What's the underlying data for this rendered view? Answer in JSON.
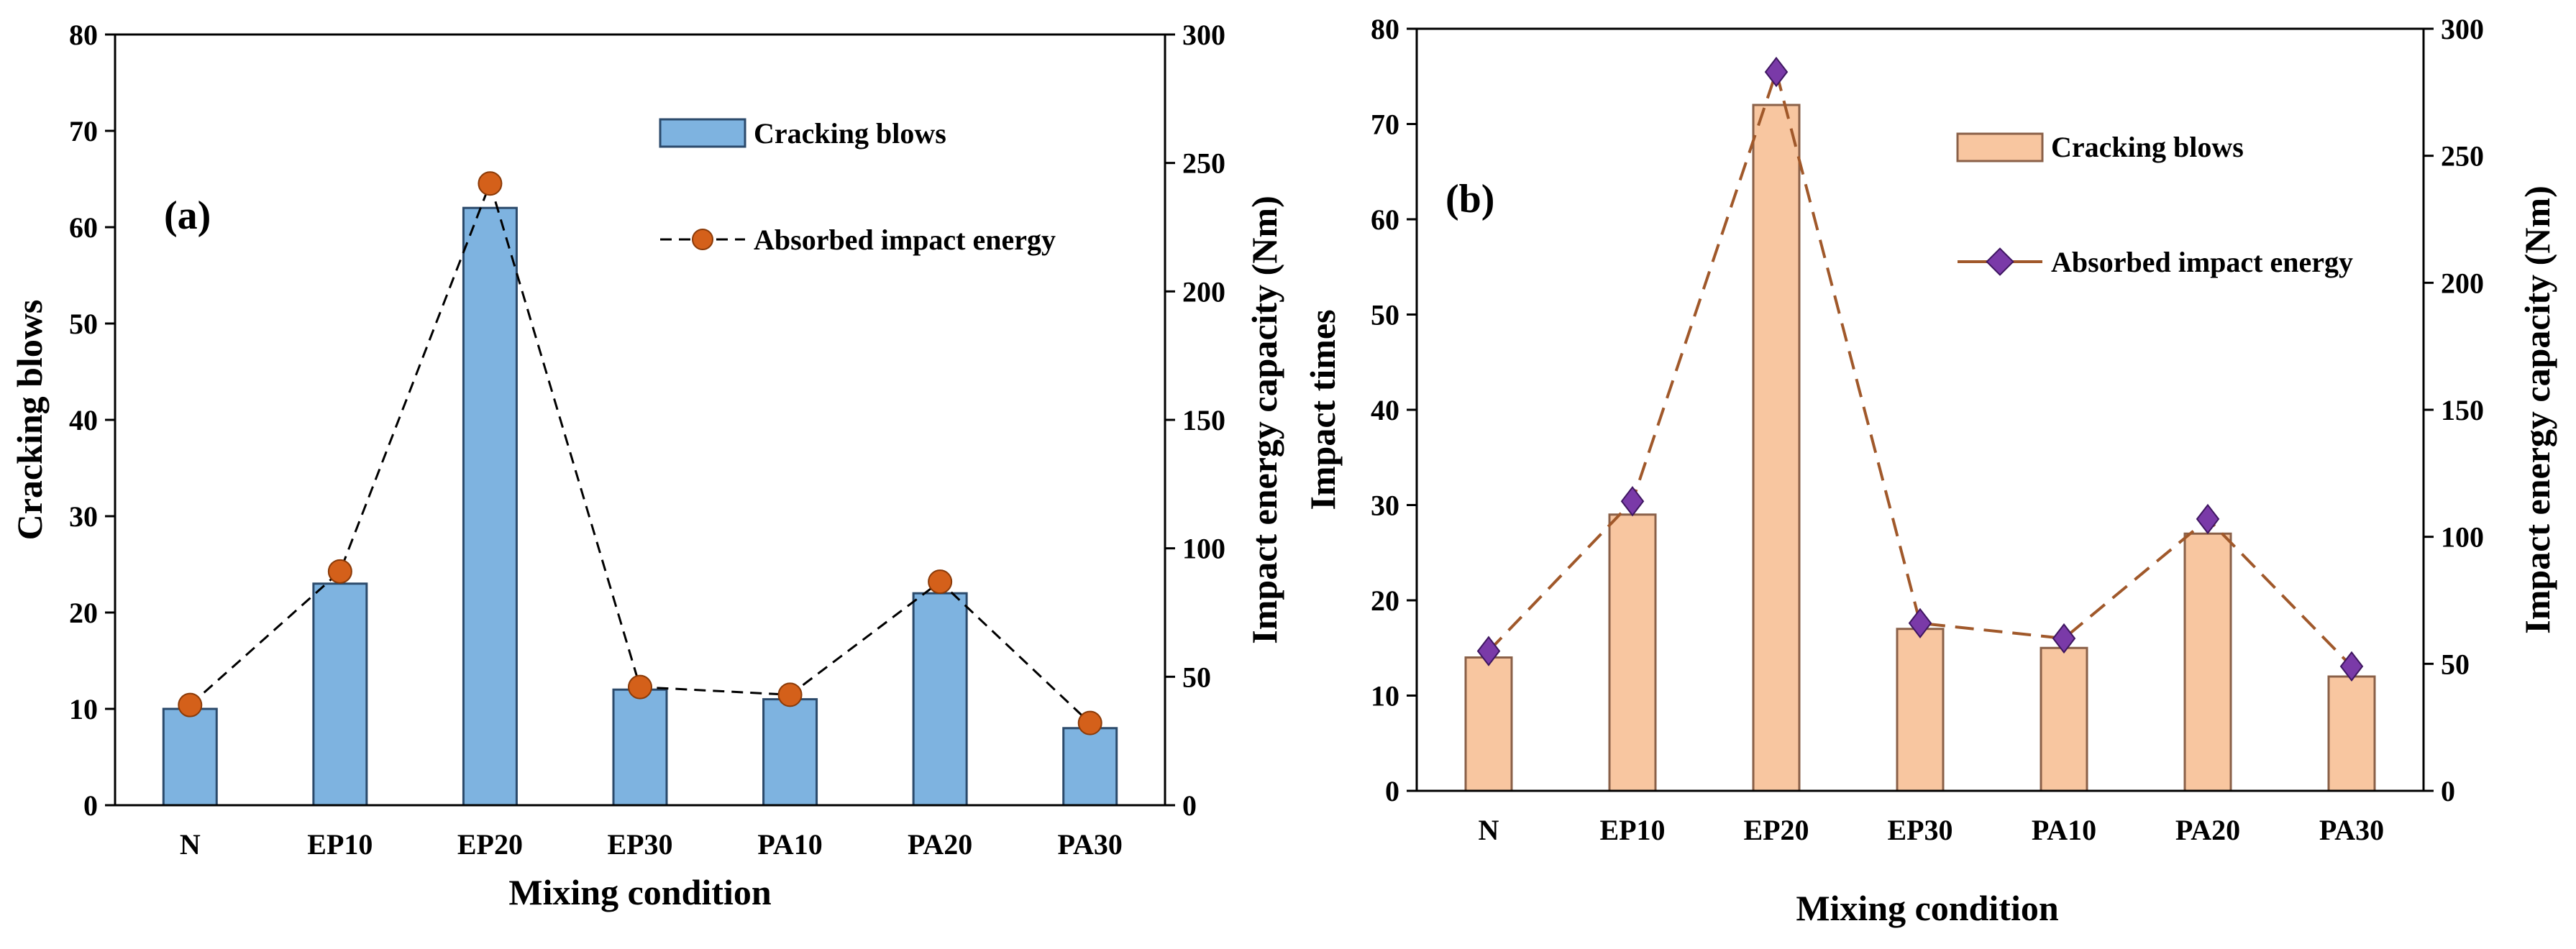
{
  "chart_data": [
    {
      "type": "bar",
      "panel_label": "(a)",
      "categories": [
        "N",
        "EP10",
        "EP20",
        "EP30",
        "PA10",
        "PA20",
        "PA30"
      ],
      "xlabel": "Mixing condition",
      "ylabel": "Cracking blows",
      "y2label": "Impact energy capacity (Nm)",
      "ylim": [
        0,
        80
      ],
      "y2lim": [
        0,
        300
      ],
      "yticks": [
        "0",
        "10",
        "20",
        "30",
        "40",
        "50",
        "60",
        "70",
        "80"
      ],
      "y2ticks": [
        "0",
        "50",
        "100",
        "150",
        "200",
        "250",
        "300"
      ],
      "legend_position": "top-right",
      "colors": {
        "bar": "#7eb3e0",
        "bar_edge": "#2b4a6b",
        "line": "#000000",
        "marker": "#d4601a",
        "marker_edge": "#8a3a08"
      },
      "series": [
        {
          "name": "Cracking blows",
          "kind": "bar",
          "axis": "left",
          "values": [
            10,
            23,
            62,
            12,
            11,
            22,
            8
          ]
        },
        {
          "name": "Absorbed impact energy",
          "kind": "line",
          "axis": "right",
          "marker": "circle",
          "values": [
            39,
            91,
            242,
            46,
            43,
            87,
            32
          ]
        }
      ]
    },
    {
      "type": "bar",
      "panel_label": "(b)",
      "categories": [
        "N",
        "EP10",
        "EP20",
        "EP30",
        "PA10",
        "PA20",
        "PA30"
      ],
      "xlabel": "Mixing condition",
      "ylabel": "Impact times",
      "y2label": "Impact energy capacity (Nm)",
      "ylim": [
        0,
        80
      ],
      "y2lim": [
        0,
        300
      ],
      "yticks": [
        "0",
        "10",
        "20",
        "30",
        "40",
        "50",
        "60",
        "70",
        "80"
      ],
      "y2ticks": [
        "0",
        "50",
        "100",
        "150",
        "200",
        "250",
        "300"
      ],
      "legend_position": "top-right",
      "colors": {
        "bar": "#f8c6a0",
        "bar_edge": "#8a6048",
        "line": "#a0582a",
        "marker": "#7a3aa8",
        "marker_edge": "#3e1660"
      },
      "series": [
        {
          "name": "Cracking blows",
          "kind": "bar",
          "axis": "left",
          "values": [
            14,
            29,
            72,
            17,
            15,
            27,
            12
          ]
        },
        {
          "name": "Absorbed impact energy",
          "kind": "line",
          "axis": "right",
          "marker": "diamond",
          "values": [
            55,
            114,
            283,
            66,
            60,
            107,
            49
          ]
        }
      ]
    }
  ]
}
